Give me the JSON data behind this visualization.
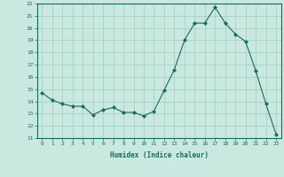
{
  "x": [
    0,
    1,
    2,
    3,
    4,
    5,
    6,
    7,
    8,
    9,
    10,
    11,
    12,
    13,
    14,
    15,
    16,
    17,
    18,
    19,
    20,
    21,
    22,
    23
  ],
  "y": [
    14.7,
    14.1,
    13.8,
    13.6,
    13.6,
    12.9,
    13.3,
    13.5,
    13.1,
    13.1,
    12.8,
    13.2,
    14.9,
    16.6,
    19.0,
    20.4,
    20.4,
    21.7,
    20.4,
    19.5,
    18.9,
    16.5,
    13.8,
    11.3
  ],
  "xlabel": "Humidex (Indice chaleur)",
  "ylim": [
    11,
    22
  ],
  "xlim": [
    -0.5,
    23.5
  ],
  "yticks": [
    11,
    12,
    13,
    14,
    15,
    16,
    17,
    18,
    19,
    20,
    21,
    22
  ],
  "xticks": [
    0,
    1,
    2,
    3,
    4,
    5,
    6,
    7,
    8,
    9,
    10,
    11,
    12,
    13,
    14,
    15,
    16,
    17,
    18,
    19,
    20,
    21,
    22,
    23
  ],
  "line_color": "#1a6b5a",
  "marker_color": "#1a6b5a",
  "bg_color": "#c8e8e0",
  "grid_color": "#a0ccbf",
  "label_color": "#1a6b5a",
  "tick_color": "#1a6b5a",
  "spine_color": "#1a6b5a"
}
